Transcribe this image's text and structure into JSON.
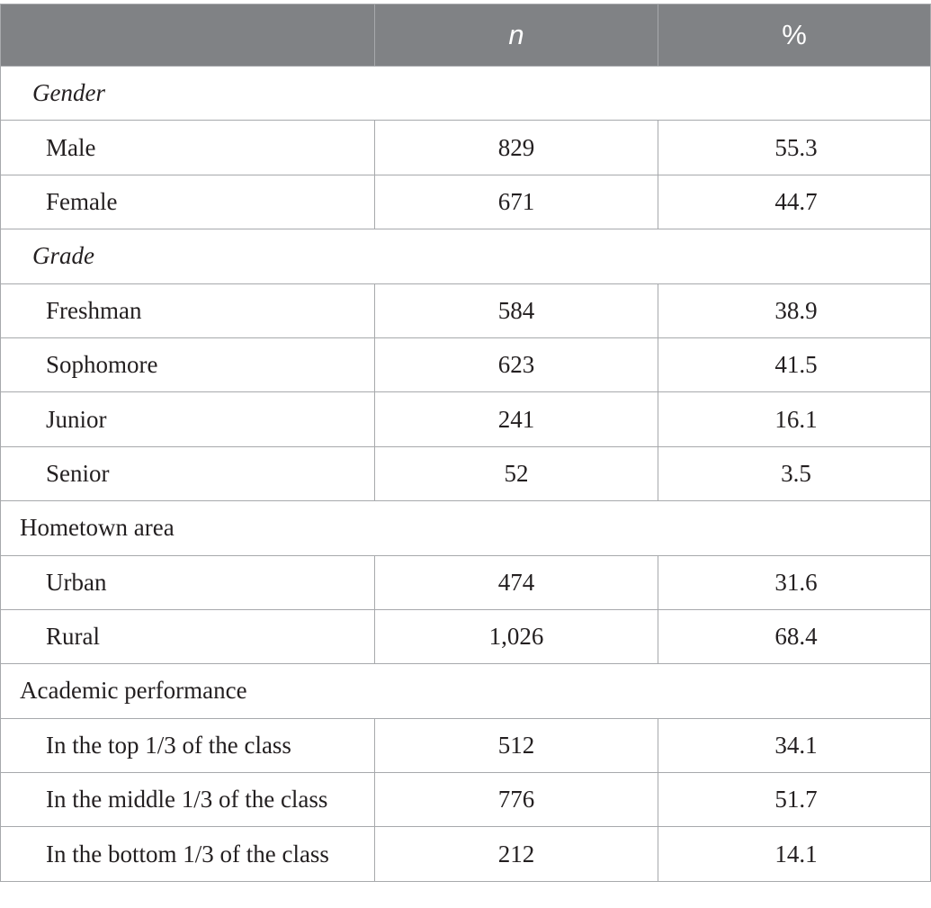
{
  "table": {
    "headers": [
      "",
      "n",
      "%"
    ],
    "sections": [
      {
        "title": "Gender",
        "italic": true,
        "rows": [
          {
            "label": "Male",
            "n": "829",
            "pct": "55.3"
          },
          {
            "label": "Female",
            "n": "671",
            "pct": "44.7"
          }
        ]
      },
      {
        "title": "Grade",
        "italic": true,
        "rows": [
          {
            "label": "Freshman",
            "n": "584",
            "pct": "38.9"
          },
          {
            "label": "Sophomore",
            "n": "623",
            "pct": "41.5"
          },
          {
            "label": "Junior",
            "n": "241",
            "pct": "16.1"
          },
          {
            "label": "Senior",
            "n": "52",
            "pct": "3.5"
          }
        ]
      },
      {
        "title": "Hometown area",
        "italic": false,
        "rows": [
          {
            "label": "Urban",
            "n": "474",
            "pct": "31.6"
          },
          {
            "label": "Rural",
            "n": "1,026",
            "pct": "68.4"
          }
        ]
      },
      {
        "title": "Academic performance",
        "italic": false,
        "rows": [
          {
            "label": "In the top 1/3 of the class",
            "n": "512",
            "pct": "34.1"
          },
          {
            "label": "In the middle 1/3 of the class",
            "n": "776",
            "pct": "51.7"
          },
          {
            "label": "In the bottom 1/3 of the class",
            "n": "212",
            "pct": "14.1"
          }
        ]
      }
    ]
  }
}
